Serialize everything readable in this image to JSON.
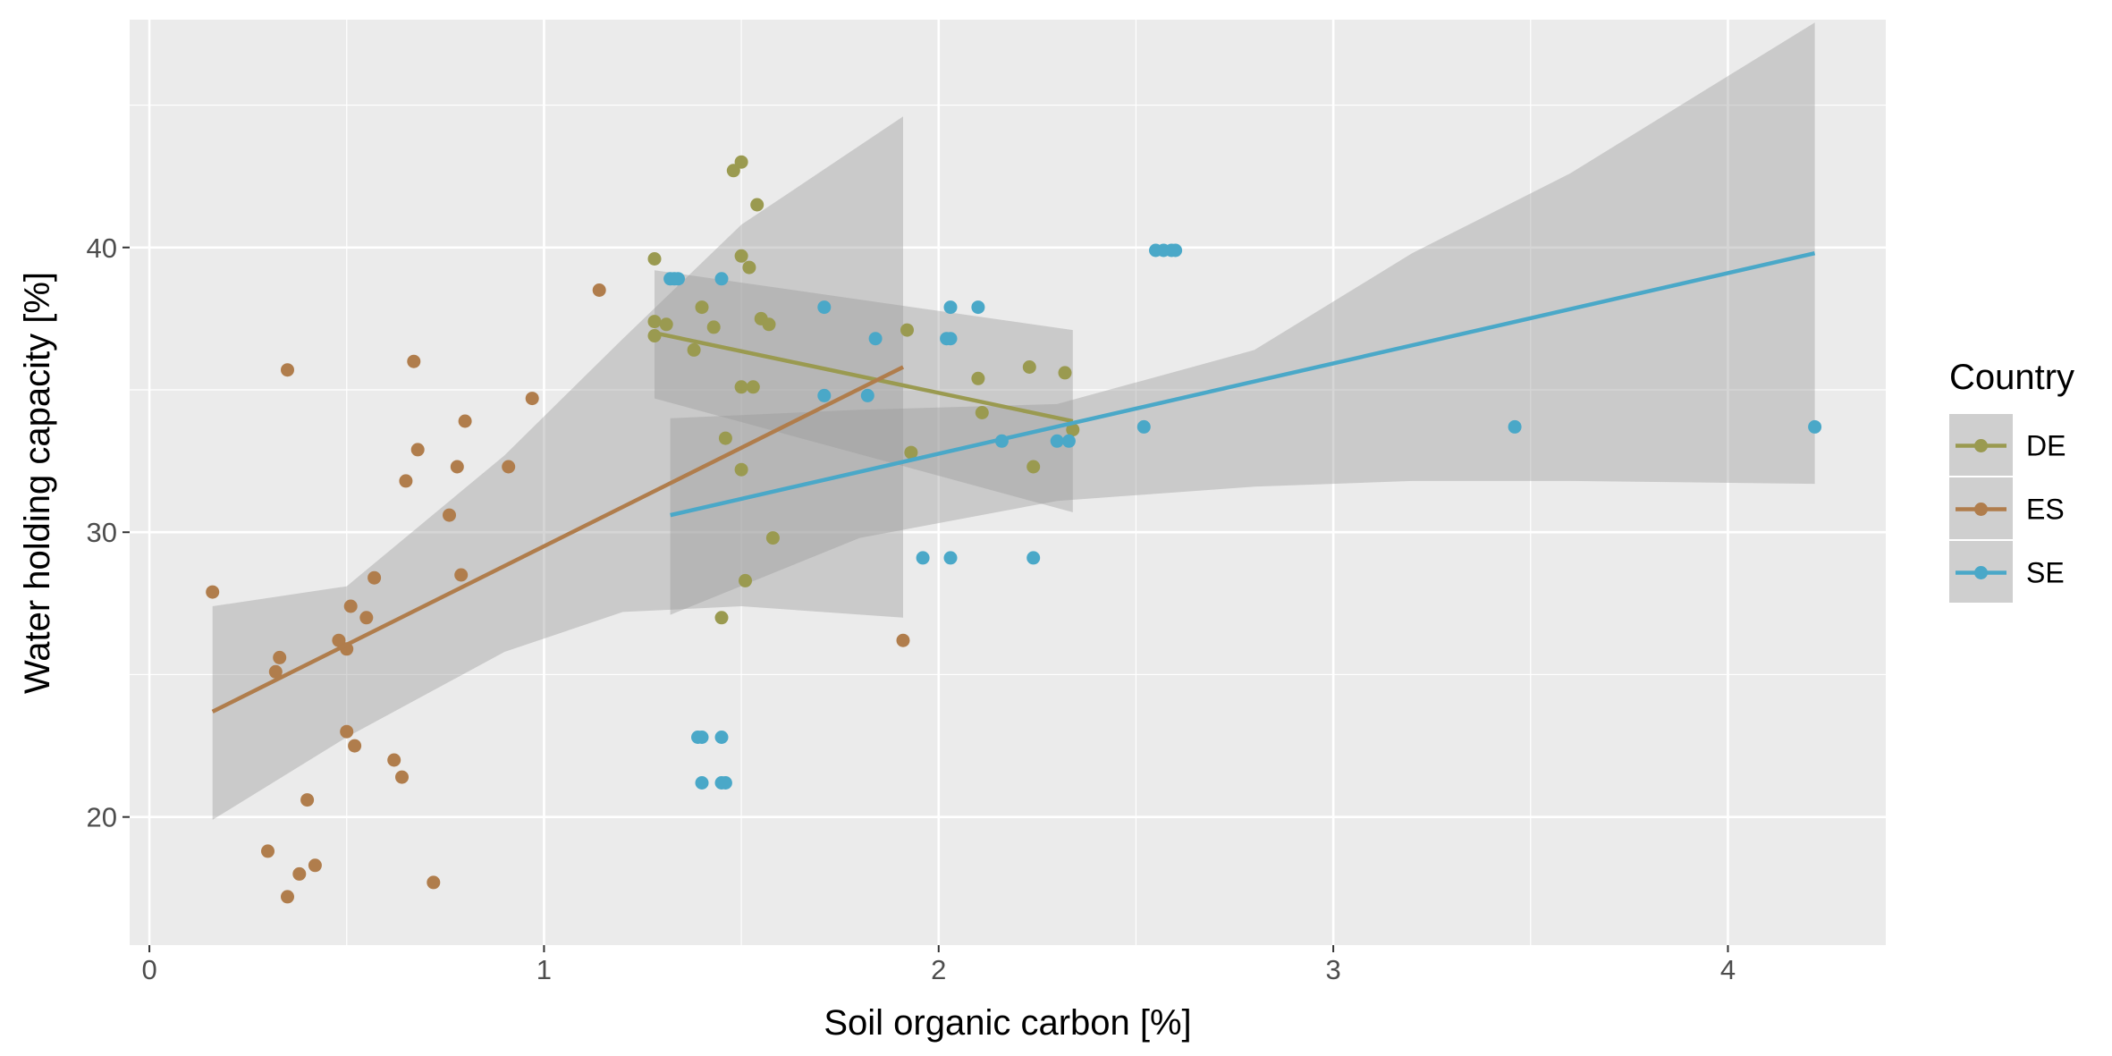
{
  "chart_data": {
    "type": "scatter",
    "xlabel": "Soil organic carbon [%]",
    "ylabel": "Water holding capacity [%]",
    "xlim": [
      -0.05,
      4.4
    ],
    "ylim": [
      15.5,
      48.0
    ],
    "x_ticks": [
      0,
      1,
      2,
      3,
      4
    ],
    "y_ticks": [
      20,
      30,
      40
    ],
    "grid": true,
    "legend": {
      "title": "Country",
      "placement": "right"
    },
    "series": [
      {
        "name": "DE",
        "color": "#9a9a50",
        "points": [
          [
            1.28,
            39.6
          ],
          [
            1.28,
            37.4
          ],
          [
            1.28,
            36.9
          ],
          [
            1.31,
            37.3
          ],
          [
            1.38,
            36.4
          ],
          [
            1.4,
            37.9
          ],
          [
            1.43,
            37.2
          ],
          [
            1.46,
            33.3
          ],
          [
            1.48,
            42.7
          ],
          [
            1.5,
            43.0
          ],
          [
            1.5,
            39.7
          ],
          [
            1.5,
            35.1
          ],
          [
            1.5,
            32.2
          ],
          [
            1.51,
            28.3
          ],
          [
            1.52,
            39.3
          ],
          [
            1.53,
            35.1
          ],
          [
            1.54,
            41.5
          ],
          [
            1.55,
            37.5
          ],
          [
            1.57,
            37.3
          ],
          [
            1.58,
            29.8
          ],
          [
            1.45,
            27.0
          ],
          [
            1.92,
            37.1
          ],
          [
            1.93,
            32.8
          ],
          [
            2.1,
            35.4
          ],
          [
            2.11,
            34.2
          ],
          [
            2.23,
            35.8
          ],
          [
            2.24,
            32.3
          ],
          [
            2.32,
            35.6
          ],
          [
            2.34,
            33.6
          ]
        ],
        "fit": {
          "x": [
            1.28,
            2.34
          ],
          "y": [
            37.0,
            33.9
          ]
        },
        "ci": {
          "x": [
            1.28,
            2.34
          ],
          "lower": [
            34.7,
            30.7
          ],
          "upper": [
            39.2,
            37.1
          ]
        }
      },
      {
        "name": "ES",
        "color": "#b07d4c",
        "points": [
          [
            0.16,
            27.9
          ],
          [
            0.3,
            18.8
          ],
          [
            0.32,
            25.1
          ],
          [
            0.33,
            25.6
          ],
          [
            0.35,
            35.7
          ],
          [
            0.35,
            17.2
          ],
          [
            0.38,
            18.0
          ],
          [
            0.4,
            20.6
          ],
          [
            0.42,
            18.3
          ],
          [
            0.48,
            26.2
          ],
          [
            0.5,
            25.9
          ],
          [
            0.5,
            23.0
          ],
          [
            0.51,
            27.4
          ],
          [
            0.52,
            22.5
          ],
          [
            0.55,
            27.0
          ],
          [
            0.57,
            28.4
          ],
          [
            0.62,
            22.0
          ],
          [
            0.64,
            21.4
          ],
          [
            0.65,
            31.8
          ],
          [
            0.67,
            36.0
          ],
          [
            0.68,
            32.9
          ],
          [
            0.72,
            17.7
          ],
          [
            0.76,
            30.6
          ],
          [
            0.78,
            32.3
          ],
          [
            0.79,
            28.5
          ],
          [
            0.8,
            33.9
          ],
          [
            0.91,
            32.3
          ],
          [
            0.97,
            34.7
          ],
          [
            1.14,
            38.5
          ],
          [
            1.91,
            26.2
          ]
        ],
        "fit": {
          "x": [
            0.16,
            1.91
          ],
          "y": [
            23.7,
            35.8
          ]
        },
        "ci": {
          "x": [
            0.16,
            0.5,
            0.9,
            1.2,
            1.5,
            1.91
          ],
          "lower": [
            19.9,
            22.8,
            25.8,
            27.2,
            27.4,
            27.0
          ],
          "upper": [
            27.4,
            28.1,
            32.7,
            36.8,
            40.8,
            44.6
          ]
        }
      },
      {
        "name": "SE",
        "color": "#4aa8c8",
        "points": [
          [
            1.32,
            38.9
          ],
          [
            1.33,
            38.9
          ],
          [
            1.34,
            38.9
          ],
          [
            1.39,
            22.8
          ],
          [
            1.4,
            22.8
          ],
          [
            1.4,
            21.2
          ],
          [
            1.45,
            38.9
          ],
          [
            1.45,
            22.8
          ],
          [
            1.45,
            21.2
          ],
          [
            1.46,
            21.2
          ],
          [
            1.71,
            37.9
          ],
          [
            1.71,
            34.8
          ],
          [
            1.82,
            34.8
          ],
          [
            1.84,
            36.8
          ],
          [
            1.96,
            29.1
          ],
          [
            2.02,
            36.8
          ],
          [
            2.03,
            36.8
          ],
          [
            2.03,
            37.9
          ],
          [
            2.03,
            29.1
          ],
          [
            2.1,
            37.9
          ],
          [
            2.16,
            33.2
          ],
          [
            2.24,
            29.1
          ],
          [
            2.3,
            33.2
          ],
          [
            2.33,
            33.2
          ],
          [
            2.52,
            33.7
          ],
          [
            2.55,
            39.9
          ],
          [
            2.57,
            39.9
          ],
          [
            2.59,
            39.9
          ],
          [
            2.6,
            39.9
          ],
          [
            3.46,
            33.7
          ],
          [
            4.22,
            33.7
          ]
        ],
        "fit": {
          "x": [
            1.32,
            4.22
          ],
          "y": [
            30.6,
            39.8
          ]
        },
        "ci": {
          "x": [
            1.32,
            1.8,
            2.3,
            2.8,
            3.2,
            3.6,
            4.22
          ],
          "lower": [
            27.1,
            29.8,
            31.1,
            31.6,
            31.8,
            31.8,
            31.7
          ],
          "upper": [
            34.0,
            34.3,
            34.5,
            36.4,
            39.8,
            42.6,
            47.9
          ]
        }
      }
    ]
  }
}
